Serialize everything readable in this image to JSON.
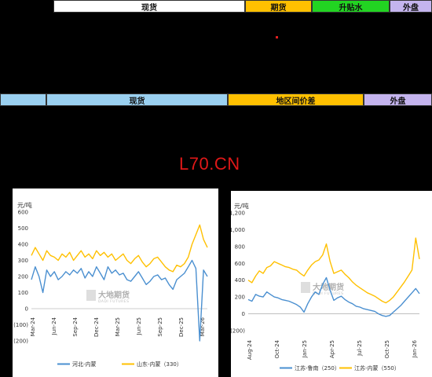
{
  "header_band_1": [
    {
      "label": "现货",
      "color": "#ffffff"
    },
    {
      "label": "期货",
      "color": "#ffc000"
    },
    {
      "label": "升贴水",
      "color": "#22d422"
    },
    {
      "label": "外盘",
      "color": "#c4b4ee"
    }
  ],
  "header_band_2": [
    {
      "label": "",
      "color": "#9ad0f0"
    },
    {
      "label": "现货",
      "color": "#9ad0f0"
    },
    {
      "label": "地区间价差",
      "color": "#ffc000"
    },
    {
      "label": "外盘",
      "color": "#c4b4ee"
    }
  ],
  "code_text": "L70.CN",
  "watermark": {
    "text": "大地期货",
    "sub": "DADI FUTURES"
  },
  "chart_data": [
    {
      "type": "line",
      "ylabel": "元/吨",
      "ylim": [
        -200,
        600
      ],
      "yticks": [
        600,
        500,
        400,
        300,
        200,
        100,
        0,
        -100,
        -200
      ],
      "ytick_labels": [
        "600",
        "500",
        "400",
        "300",
        "200",
        "100",
        "0",
        "(100)",
        "(200)"
      ],
      "negative_tick_color": "#cc0000",
      "xticks": [
        "Mar-24",
        "Jun-24",
        "Sep-24",
        "Dec-24",
        "Mar-25",
        "Jun-25",
        "Sep-25",
        "Dec-25",
        "Mar-26"
      ],
      "legend_position": "bottom",
      "grid": false,
      "series": [
        {
          "name": "河北-内蒙",
          "color": "#4a8fd0",
          "values": [
            180,
            260,
            200,
            100,
            240,
            200,
            230,
            180,
            200,
            230,
            210,
            240,
            220,
            250,
            190,
            230,
            200,
            260,
            220,
            180,
            260,
            220,
            240,
            210,
            220,
            180,
            170,
            200,
            230,
            190,
            150,
            170,
            200,
            210,
            180,
            190,
            150,
            120,
            180,
            200,
            220,
            260,
            300,
            250,
            -200,
            240,
            200
          ]
        },
        {
          "name": "山东-内蒙（330）",
          "color": "#ffc000",
          "values": [
            330,
            380,
            340,
            300,
            360,
            330,
            320,
            300,
            340,
            320,
            350,
            300,
            330,
            360,
            320,
            340,
            310,
            360,
            330,
            350,
            320,
            340,
            300,
            320,
            340,
            300,
            280,
            310,
            330,
            290,
            260,
            280,
            310,
            320,
            290,
            260,
            240,
            230,
            270,
            260,
            280,
            320,
            400,
            460,
            520,
            430,
            380
          ]
        }
      ]
    },
    {
      "type": "line",
      "ylabel": "元/吨",
      "ylim": [
        -200,
        1200
      ],
      "yticks": [
        1200,
        1000,
        800,
        600,
        400,
        200,
        0,
        -200
      ],
      "ytick_labels": [
        "1,200",
        "1,000",
        "800",
        "600",
        "400",
        "200",
        "0",
        "(200)"
      ],
      "negative_tick_color": "#cc0000",
      "xticks": [
        "Aug-24",
        "Oct-24",
        "Jan-25",
        "Apr-25",
        "Jul-25",
        "Oct-25",
        "Jan-26"
      ],
      "legend_position": "bottom",
      "grid": false,
      "series": [
        {
          "name": "江苏-鲁南（250）",
          "color": "#4a8fd0",
          "values": [
            170,
            150,
            230,
            210,
            200,
            260,
            230,
            200,
            190,
            170,
            160,
            150,
            130,
            110,
            80,
            20,
            120,
            200,
            260,
            230,
            350,
            430,
            280,
            160,
            190,
            210,
            170,
            140,
            120,
            90,
            80,
            60,
            50,
            40,
            30,
            0,
            -20,
            -30,
            -20,
            20,
            60,
            100,
            150,
            200,
            250,
            300,
            240
          ]
        },
        {
          "name": "江苏-内蒙（550）",
          "color": "#ffc000",
          "values": [
            400,
            370,
            450,
            510,
            480,
            550,
            570,
            620,
            600,
            580,
            560,
            550,
            530,
            520,
            480,
            450,
            520,
            580,
            620,
            640,
            700,
            830,
            620,
            480,
            500,
            520,
            470,
            430,
            380,
            340,
            310,
            280,
            250,
            230,
            210,
            180,
            150,
            130,
            160,
            200,
            260,
            320,
            380,
            450,
            520,
            900,
            650
          ]
        }
      ]
    }
  ]
}
